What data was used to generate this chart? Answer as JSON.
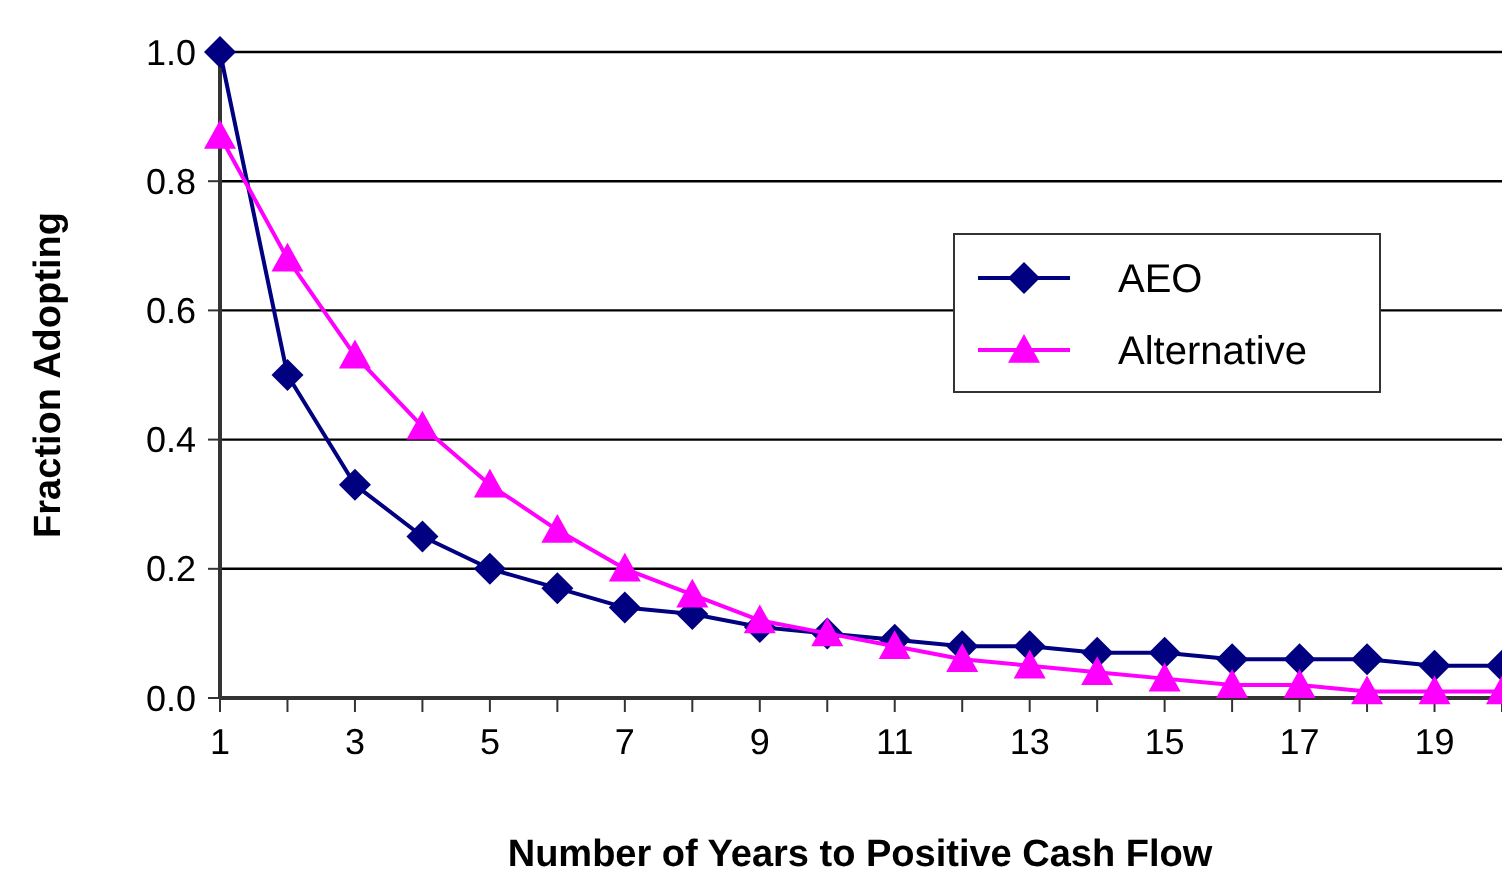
{
  "chart_data": {
    "type": "line",
    "xlabel": "Number of Years to Positive Cash Flow",
    "ylabel": "Fraction Adopting",
    "x": [
      1,
      2,
      3,
      4,
      5,
      6,
      7,
      8,
      9,
      10,
      11,
      12,
      13,
      14,
      15,
      16,
      17,
      18,
      19,
      20
    ],
    "xlim": [
      1,
      20
    ],
    "xticks": [
      1,
      {
        "value": 2,
        "label": null
      },
      3,
      {
        "value": 4,
        "label": null
      },
      5,
      {
        "value": 6,
        "label": null
      },
      7,
      {
        "value": 8,
        "label": null
      },
      9,
      {
        "value": 10,
        "label": null
      },
      11,
      {
        "value": 12,
        "label": null
      },
      13,
      {
        "value": 14,
        "label": null
      },
      15,
      {
        "value": 16,
        "label": null
      },
      17,
      {
        "value": 18,
        "label": null
      },
      19,
      {
        "value": 20,
        "label": null
      }
    ],
    "ylim": [
      0,
      1
    ],
    "yticks": [
      {
        "value": 0,
        "label": "0.0"
      },
      {
        "value": 0.2,
        "label": "0.2"
      },
      {
        "value": 0.4,
        "label": "0.4"
      },
      {
        "value": 0.6,
        "label": "0.6"
      },
      {
        "value": 0.8,
        "label": "0.8"
      },
      {
        "value": 1,
        "label": "1.0"
      }
    ],
    "series": [
      {
        "name": "AEO",
        "color": "#000080",
        "marker": "diamond",
        "values": [
          1.0,
          0.5,
          0.33,
          0.25,
          0.2,
          0.17,
          0.14,
          0.13,
          0.11,
          0.1,
          0.09,
          0.08,
          0.08,
          0.07,
          0.07,
          0.06,
          0.06,
          0.06,
          0.05,
          0.05
        ]
      },
      {
        "name": "Alternative",
        "color": "#ff00ff",
        "marker": "triangle",
        "values": [
          0.87,
          0.68,
          0.53,
          0.42,
          0.33,
          0.26,
          0.2,
          0.16,
          0.12,
          0.1,
          0.08,
          0.06,
          0.05,
          0.04,
          0.03,
          0.02,
          0.02,
          0.01,
          0.01,
          0.01
        ]
      }
    ],
    "grid": "y",
    "legend": "top right",
    "line_style": "solid"
  }
}
